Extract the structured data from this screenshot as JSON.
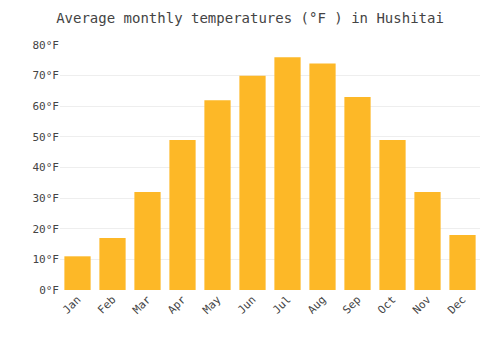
{
  "chart_data": {
    "type": "bar",
    "title": "Average monthly temperatures (°F ) in Hushitai",
    "categories": [
      "Jan",
      "Feb",
      "Mar",
      "Apr",
      "May",
      "Jun",
      "Jul",
      "Aug",
      "Sep",
      "Oct",
      "Nov",
      "Dec"
    ],
    "values": [
      11,
      17,
      32,
      49,
      62,
      70,
      76,
      74,
      63,
      49,
      32,
      18
    ],
    "color": "#FDB827",
    "ylim": [
      0,
      80
    ],
    "yticks": [
      {
        "value": 0,
        "label": "0°F"
      },
      {
        "value": 10,
        "label": "10°F"
      },
      {
        "value": 20,
        "label": "20°F"
      },
      {
        "value": 30,
        "label": "30°F"
      },
      {
        "value": 40,
        "label": "40°F"
      },
      {
        "value": 50,
        "label": "50°F"
      },
      {
        "value": 60,
        "label": "60°F"
      },
      {
        "value": 70,
        "label": "70°F"
      },
      {
        "value": 80,
        "label": "80°F"
      }
    ],
    "grid": true
  }
}
